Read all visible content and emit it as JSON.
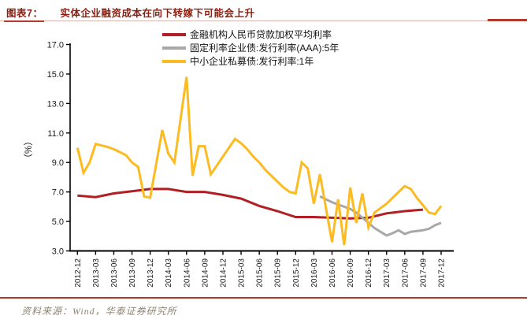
{
  "header": {
    "figure_label": "图表7：",
    "figure_title": "实体企业融资成本在向下转嫁下可能会上升"
  },
  "source_line": "资料来源：Wind，华泰证券研究所",
  "colors": {
    "title_red": "#8b1e10",
    "rule_red": "#b5382a",
    "axis_black": "#000000"
  },
  "chart_data": {
    "type": "line",
    "title": "",
    "xlabel": "",
    "ylabel": "（%）",
    "ylim": [
      3.0,
      17.0
    ],
    "ytick_step": 2.0,
    "ytick_labels": [
      "3.0",
      "5.0",
      "7.0",
      "9.0",
      "11.0",
      "13.0",
      "15.0",
      "17.0"
    ],
    "grid": false,
    "legend_position": "top-center",
    "x": [
      "2012-12",
      "2013-01",
      "2013-02",
      "2013-03",
      "2013-04",
      "2013-05",
      "2013-06",
      "2013-07",
      "2013-08",
      "2013-09",
      "2013-10",
      "2013-11",
      "2013-12",
      "2014-01",
      "2014-02",
      "2014-03",
      "2014-04",
      "2014-05",
      "2014-06",
      "2014-07",
      "2014-08",
      "2014-09",
      "2014-10",
      "2014-11",
      "2014-12",
      "2015-01",
      "2015-02",
      "2015-03",
      "2015-04",
      "2015-05",
      "2015-06",
      "2015-07",
      "2015-08",
      "2015-09",
      "2015-10",
      "2015-11",
      "2015-12",
      "2016-01",
      "2016-02",
      "2016-03",
      "2016-04",
      "2016-05",
      "2016-06",
      "2016-07",
      "2016-08",
      "2016-09",
      "2016-10",
      "2016-11",
      "2016-12",
      "2017-01",
      "2017-02",
      "2017-03",
      "2017-04",
      "2017-05",
      "2017-06",
      "2017-07",
      "2017-08",
      "2017-09",
      "2017-10",
      "2017-11",
      "2017-12"
    ],
    "x_tick_labels": [
      "2012-12",
      "2013-03",
      "2013-06",
      "2013-09",
      "2013-12",
      "2014-03",
      "2014-06",
      "2014-09",
      "2014-12",
      "2015-03",
      "2015-06",
      "2015-09",
      "2015-12",
      "2016-03",
      "2016-06",
      "2016-09",
      "2016-12",
      "2017-03",
      "2017-06",
      "2017-09",
      "2017-12"
    ],
    "series": [
      {
        "key": "weighted-loan-rate",
        "name": "金融机构人民币贷款加权平均利率",
        "color": "#b01f24",
        "values": [
          6.75,
          null,
          null,
          6.65,
          null,
          null,
          6.9,
          null,
          null,
          7.05,
          null,
          null,
          7.2,
          null,
          null,
          7.2,
          null,
          null,
          7.0,
          null,
          null,
          7.0,
          null,
          null,
          6.8,
          null,
          null,
          6.55,
          null,
          null,
          6.05,
          null,
          null,
          5.7,
          null,
          null,
          5.3,
          null,
          null,
          5.3,
          null,
          null,
          5.25,
          null,
          null,
          5.2,
          null,
          null,
          5.25,
          null,
          null,
          5.55,
          null,
          null,
          5.7,
          null,
          null,
          5.8,
          null,
          null,
          null
        ]
      },
      {
        "key": "aaa-corp-bond-rate",
        "name": "固定利率企业债:发行利率(AAA):5年",
        "color": "#a8a8a8",
        "values": [
          null,
          null,
          null,
          null,
          null,
          null,
          null,
          null,
          null,
          null,
          null,
          null,
          null,
          null,
          null,
          null,
          null,
          null,
          null,
          null,
          null,
          null,
          null,
          null,
          null,
          null,
          null,
          null,
          null,
          null,
          null,
          null,
          null,
          null,
          null,
          null,
          null,
          null,
          null,
          null,
          6.7,
          6.5,
          6.3,
          6.15,
          6.0,
          5.85,
          5.6,
          5.25,
          4.9,
          4.55,
          4.3,
          4.05,
          4.2,
          4.4,
          4.15,
          4.3,
          4.35,
          4.4,
          4.5,
          4.75,
          4.9
        ]
      },
      {
        "key": "sme-private-bond-rate",
        "name": "中小企业私募债:发行利率:1年",
        "color": "#fbbb21",
        "values": [
          10.0,
          8.3,
          9.0,
          10.25,
          10.15,
          10.05,
          9.9,
          9.7,
          9.5,
          9.0,
          8.7,
          6.7,
          6.6,
          8.9,
          11.2,
          9.6,
          9.0,
          11.9,
          14.8,
          8.1,
          10.1,
          10.1,
          8.2,
          8.8,
          9.4,
          10.0,
          10.6,
          10.3,
          9.9,
          9.4,
          9.0,
          8.5,
          8.1,
          7.7,
          7.3,
          7.0,
          6.9,
          9.0,
          8.6,
          6.2,
          8.2,
          5.9,
          3.6,
          6.5,
          3.4,
          7.3,
          4.9,
          6.9,
          4.6,
          5.6,
          5.9,
          6.2,
          6.6,
          7.0,
          7.4,
          7.2,
          6.6,
          6.1,
          5.6,
          5.5,
          6.05
        ]
      }
    ]
  }
}
